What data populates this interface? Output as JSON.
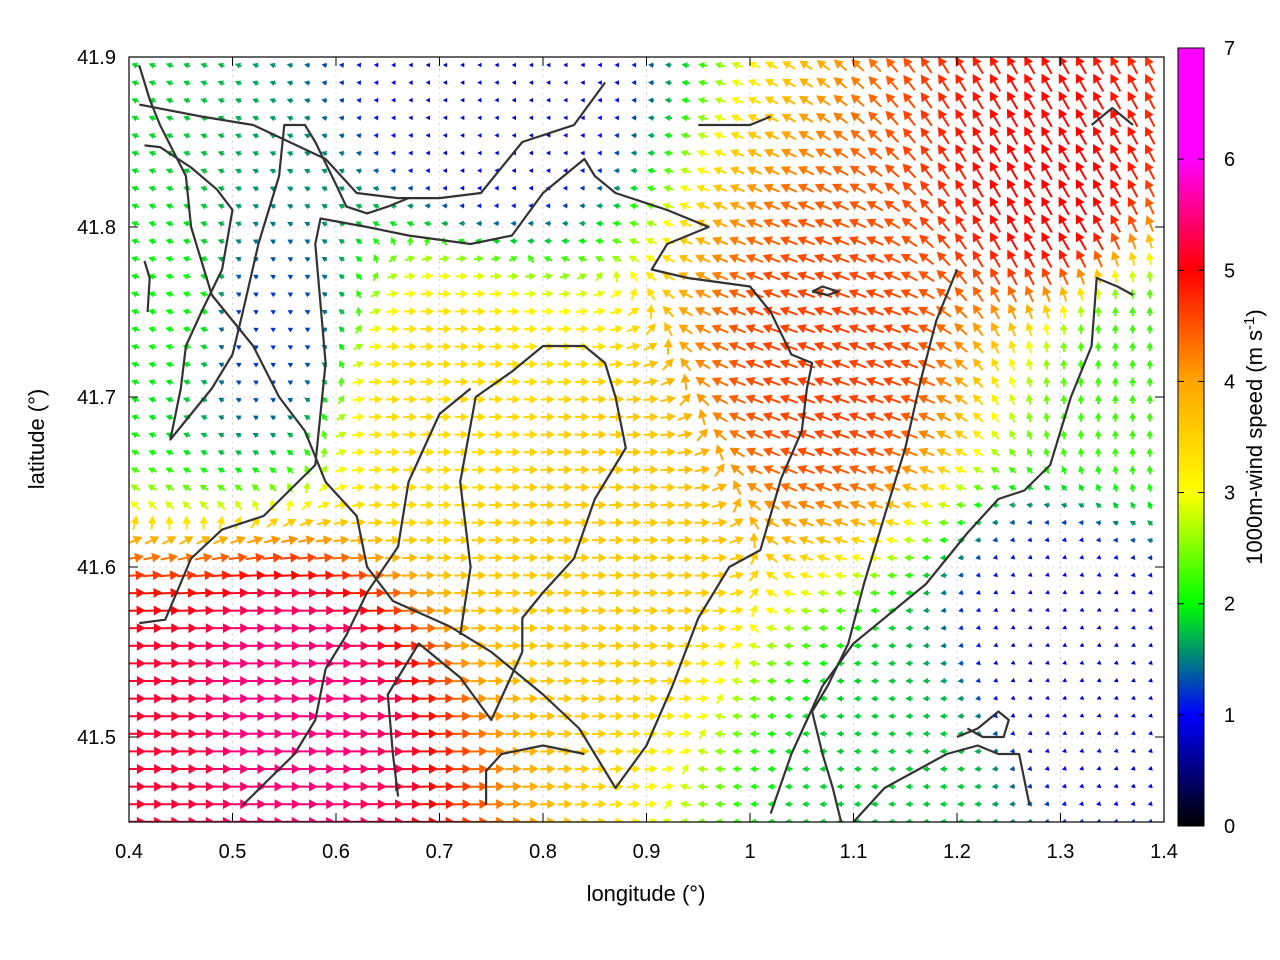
{
  "chart_data": {
    "type": "vector-field",
    "xlabel": "longitude (°)",
    "ylabel": "latitude (°)",
    "xlim": [
      0.4,
      1.4
    ],
    "ylim": [
      41.45,
      41.9
    ],
    "xticks": [
      0.4,
      0.5,
      0.6,
      0.7,
      0.8,
      0.9,
      1.0,
      1.1,
      1.2,
      1.3,
      1.4
    ],
    "xtick_labels": [
      "0.4",
      "0.5",
      "0.6",
      "0.7",
      "0.8",
      "0.9",
      "1",
      "1.1",
      "1.2",
      "1.3",
      "1.4"
    ],
    "yticks": [
      41.5,
      41.6,
      41.7,
      41.8,
      41.9
    ],
    "ytick_labels": [
      "41.5",
      "41.6",
      "41.7",
      "41.8",
      "41.9"
    ],
    "grid": true,
    "colorbar": {
      "label_main": "1000m-wind speed (m s",
      "label_exp": "-1",
      "label_close": ")",
      "range": [
        0,
        7
      ],
      "ticks": [
        0,
        1,
        2,
        3,
        4,
        5,
        6,
        7
      ],
      "tick_labels": [
        "0",
        "1",
        "2",
        "3",
        "4",
        "5",
        "6",
        "7"
      ],
      "palette": [
        "#000000",
        "#0000ff",
        "#00ff00",
        "#ffff00",
        "#ffa500",
        "#ff0000",
        "#ff00ff"
      ]
    },
    "wind_field": {
      "description_grid_lon_step": 0.01,
      "regions": [
        {
          "lon": 0.4,
          "lat": 41.5,
          "speed": 5.2,
          "dir_deg": 0
        },
        {
          "lon": 0.55,
          "lat": 41.52,
          "speed": 5.5,
          "dir_deg": 0
        },
        {
          "lon": 0.45,
          "lat": 41.75,
          "speed": 2.0,
          "dir_deg": 165
        },
        {
          "lon": 0.52,
          "lat": 41.74,
          "speed": 1.2,
          "dir_deg": 150
        },
        {
          "lon": 0.7,
          "lat": 41.7,
          "speed": 3.4,
          "dir_deg": 0
        },
        {
          "lon": 0.85,
          "lat": 41.62,
          "speed": 3.6,
          "dir_deg": 0
        },
        {
          "lon": 1.08,
          "lat": 41.72,
          "speed": 4.6,
          "dir_deg": 160
        },
        {
          "lon": 1.3,
          "lat": 41.82,
          "speed": 5.0,
          "dir_deg": 120
        },
        {
          "lon": 1.3,
          "lat": 41.55,
          "speed": 0.8,
          "dir_deg": 200
        },
        {
          "lon": 0.75,
          "lat": 41.88,
          "speed": 0.8,
          "dir_deg": 180
        },
        {
          "lon": 1.15,
          "lat": 41.48,
          "speed": 1.8,
          "dir_deg": 180
        },
        {
          "lon": 1.37,
          "lat": 41.72,
          "speed": 2.2,
          "dir_deg": 90
        }
      ]
    },
    "contours": [
      [
        [
          0.41,
          41.567
        ],
        [
          0.435,
          41.569
        ],
        [
          0.46,
          41.605
        ],
        [
          0.49,
          41.622
        ],
        [
          0.53,
          41.63
        ],
        [
          0.555,
          41.645
        ],
        [
          0.58,
          41.66
        ],
        [
          0.59,
          41.72
        ],
        [
          0.58,
          41.79
        ],
        [
          0.585,
          41.805
        ],
        [
          0.63,
          41.8
        ],
        [
          0.67,
          41.795
        ],
        [
          0.73,
          41.79
        ],
        [
          0.77,
          41.795
        ],
        [
          0.8,
          41.82
        ],
        [
          0.84,
          41.84
        ],
        [
          0.85,
          41.83
        ],
        [
          0.87,
          41.82
        ],
        [
          0.92,
          41.81
        ],
        [
          0.96,
          41.8
        ],
        [
          0.92,
          41.79
        ],
        [
          0.905,
          41.775
        ],
        [
          0.94,
          41.77
        ],
        [
          1.0,
          41.765
        ],
        [
          1.02,
          41.75
        ],
        [
          1.04,
          41.725
        ],
        [
          1.06,
          41.72
        ],
        [
          1.055,
          41.705
        ],
        [
          1.05,
          41.68
        ],
        [
          1.03,
          41.652
        ],
        [
          1.01,
          41.61
        ],
        [
          0.98,
          41.6
        ],
        [
          0.95,
          41.57
        ],
        [
          0.925,
          41.53
        ],
        [
          0.9,
          41.495
        ],
        [
          0.87,
          41.47
        ],
        [
          0.835,
          41.505
        ],
        [
          0.8,
          41.525
        ],
        [
          0.75,
          41.55
        ],
        [
          0.71,
          41.565
        ],
        [
          0.655,
          41.58
        ],
        [
          0.63,
          41.6
        ],
        [
          0.62,
          41.63
        ],
        [
          0.59,
          41.65
        ],
        [
          0.57,
          41.68
        ],
        [
          0.545,
          41.7
        ],
        [
          0.52,
          41.73
        ],
        [
          0.5,
          41.745
        ],
        [
          0.48,
          41.76
        ],
        [
          0.46,
          41.8
        ],
        [
          0.455,
          41.83
        ],
        [
          0.43,
          41.86
        ],
        [
          0.42,
          41.875
        ],
        [
          0.41,
          41.895
        ]
      ],
      [
        [
          0.41,
          41.872
        ],
        [
          0.47,
          41.865
        ],
        [
          0.52,
          41.86
        ],
        [
          0.59,
          41.84
        ],
        [
          0.62,
          41.82
        ],
        [
          0.66,
          41.817
        ],
        [
          0.7,
          41.817
        ],
        [
          0.74,
          41.82
        ],
        [
          0.78,
          41.85
        ],
        [
          0.83,
          41.86
        ],
        [
          0.86,
          41.885
        ]
      ],
      [
        [
          0.415,
          41.848
        ],
        [
          0.43,
          41.847
        ],
        [
          0.46,
          41.835
        ],
        [
          0.485,
          41.822
        ],
        [
          0.5,
          41.81
        ],
        [
          0.49,
          41.775
        ],
        [
          0.47,
          41.75
        ],
        [
          0.455,
          41.73
        ],
        [
          0.45,
          41.705
        ],
        [
          0.44,
          41.675
        ],
        [
          0.46,
          41.69
        ],
        [
          0.48,
          41.705
        ],
        [
          0.5,
          41.725
        ],
        [
          0.51,
          41.75
        ],
        [
          0.525,
          41.79
        ],
        [
          0.545,
          41.83
        ],
        [
          0.55,
          41.86
        ],
        [
          0.57,
          41.86
        ],
        [
          0.58,
          41.85
        ],
        [
          0.6,
          41.825
        ],
        [
          0.61,
          41.812
        ],
        [
          0.63,
          41.808
        ],
        [
          0.65,
          41.812
        ],
        [
          0.67,
          41.817
        ]
      ],
      [
        [
          0.72,
          41.56
        ],
        [
          0.73,
          41.6
        ],
        [
          0.72,
          41.65
        ],
        [
          0.735,
          41.7
        ],
        [
          0.77,
          41.715
        ],
        [
          0.8,
          41.73
        ],
        [
          0.84,
          41.73
        ],
        [
          0.86,
          41.72
        ],
        [
          0.87,
          41.7
        ],
        [
          0.88,
          41.67
        ],
        [
          0.85,
          41.64
        ],
        [
          0.83,
          41.605
        ],
        [
          0.8,
          41.585
        ],
        [
          0.78,
          41.57
        ],
        [
          0.78,
          41.55
        ],
        [
          0.75,
          41.51
        ],
        [
          0.72,
          41.535
        ],
        [
          0.68,
          41.555
        ],
        [
          0.65,
          41.525
        ],
        [
          0.655,
          41.49
        ],
        [
          0.66,
          41.465
        ]
      ],
      [
        [
          0.51,
          41.46
        ],
        [
          0.56,
          41.49
        ],
        [
          0.58,
          41.51
        ],
        [
          0.59,
          41.54
        ],
        [
          0.61,
          41.56
        ],
        [
          0.63,
          41.585
        ],
        [
          0.66,
          41.612
        ],
        [
          0.67,
          41.65
        ],
        [
          0.7,
          41.69
        ],
        [
          0.73,
          41.705
        ]
      ],
      [
        [
          0.745,
          41.46
        ],
        [
          0.745,
          41.48
        ],
        [
          0.76,
          41.49
        ],
        [
          0.8,
          41.495
        ],
        [
          0.84,
          41.49
        ]
      ],
      [
        [
          1.02,
          41.455
        ],
        [
          1.04,
          41.49
        ],
        [
          1.07,
          41.53
        ],
        [
          1.1,
          41.555
        ],
        [
          1.14,
          41.575
        ],
        [
          1.17,
          41.59
        ],
        [
          1.19,
          41.605
        ],
        [
          1.21,
          41.62
        ],
        [
          1.24,
          41.64
        ],
        [
          1.265,
          41.645
        ],
        [
          1.29,
          41.66
        ],
        [
          1.31,
          41.7
        ],
        [
          1.33,
          41.73
        ],
        [
          1.335,
          41.77
        ],
        [
          1.355,
          41.765
        ],
        [
          1.37,
          41.76
        ]
      ],
      [
        [
          1.1,
          41.45
        ],
        [
          1.13,
          41.47
        ],
        [
          1.16,
          41.48
        ],
        [
          1.19,
          41.49
        ],
        [
          1.22,
          41.495
        ],
        [
          1.24,
          41.49
        ],
        [
          1.26,
          41.49
        ],
        [
          1.27,
          41.46
        ]
      ],
      [
        [
          1.2,
          41.5
        ],
        [
          1.22,
          41.505
        ],
        [
          1.24,
          41.515
        ],
        [
          1.25,
          41.51
        ],
        [
          1.245,
          41.5
        ],
        [
          1.225,
          41.5
        ],
        [
          1.21,
          41.505
        ]
      ],
      [
        [
          1.09,
          41.445
        ],
        [
          1.08,
          41.47
        ],
        [
          1.07,
          41.49
        ],
        [
          1.06,
          41.515
        ],
        [
          1.075,
          41.53
        ],
        [
          1.095,
          41.555
        ],
        [
          1.11,
          41.59
        ],
        [
          1.13,
          41.63
        ],
        [
          1.15,
          41.67
        ],
        [
          1.165,
          41.71
        ],
        [
          1.18,
          41.745
        ],
        [
          1.19,
          41.76
        ],
        [
          1.2,
          41.775
        ]
      ],
      [
        [
          1.33,
          41.86
        ],
        [
          1.35,
          41.87
        ],
        [
          1.37,
          41.86
        ]
      ],
      [
        [
          0.95,
          41.86
        ],
        [
          1.0,
          41.86
        ],
        [
          1.02,
          41.865
        ]
      ],
      [
        [
          1.06,
          41.762
        ],
        [
          1.075,
          41.76
        ],
        [
          1.085,
          41.762
        ],
        [
          1.07,
          41.765
        ],
        [
          1.06,
          41.762
        ]
      ],
      [
        [
          0.415,
          41.78
        ],
        [
          0.42,
          41.77
        ],
        [
          0.418,
          41.75
        ]
      ]
    ]
  }
}
